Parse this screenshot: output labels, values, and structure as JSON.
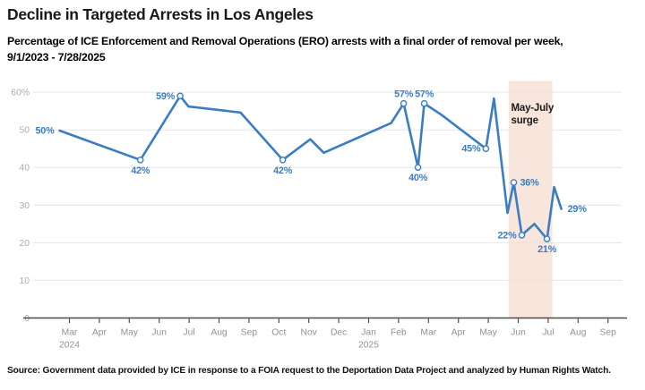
{
  "header": {
    "title": "Decline in Targeted Arrests in Los Angeles",
    "subtitle_line1": "Percentage of ICE Enforcement and Removal Operations (ERO) arrests with a final order of removal per week,",
    "subtitle_line2": "9/1/2023 - 7/28/2025"
  },
  "source": "Source: Government data provided by ICE in response to a FOIA request to the Deportation Data Project and analyzed by Human Rights Watch.",
  "chart_data": {
    "type": "line",
    "title": "Decline in Targeted Arrests in Los Angeles",
    "xlabel": "",
    "ylabel": "",
    "ylim": [
      0,
      62
    ],
    "grid": "horizontal",
    "line_color": "#3a7dc2",
    "marker_style": "open-circle",
    "x_axis": {
      "tick_labels": [
        "Mar",
        "Apr",
        "May",
        "Jun",
        "Jul",
        "Aug",
        "Sep",
        "Oct",
        "Nov",
        "Dec",
        "Jan",
        "Feb",
        "Mar",
        "Apr",
        "May",
        "Jun",
        "Jul",
        "Aug",
        "Sep"
      ],
      "year_labels": [
        {
          "text": "2024",
          "under_tick": 0
        },
        {
          "text": "2025",
          "under_tick": 10
        }
      ]
    },
    "y_axis": {
      "ticks": [
        {
          "v": 60,
          "label": "60%"
        },
        {
          "v": 50,
          "label": "50"
        },
        {
          "v": 40,
          "label": "40"
        },
        {
          "v": 30,
          "label": "30"
        },
        {
          "v": 20,
          "label": "20"
        },
        {
          "v": 10,
          "label": "10"
        },
        {
          "v": 0,
          "label": "0"
        }
      ]
    },
    "points": [
      {
        "m": -0.33,
        "v": 49.8,
        "label": "50%",
        "label_pos": "left",
        "marker": false
      },
      {
        "m": 2.37,
        "v": 42,
        "label": "42%",
        "label_pos": "below",
        "marker": true
      },
      {
        "m": 3.7,
        "v": 59,
        "label": "59%",
        "label_pos": "left",
        "marker": true
      },
      {
        "m": 3.98,
        "v": 56.2
      },
      {
        "m": 5.72,
        "v": 54.6
      },
      {
        "m": 7.13,
        "v": 42,
        "label": "42%",
        "label_pos": "below",
        "marker": true
      },
      {
        "m": 8.05,
        "v": 47.5
      },
      {
        "m": 8.5,
        "v": 43.9
      },
      {
        "m": 10.75,
        "v": 51.8
      },
      {
        "m": 11.17,
        "v": 57,
        "label": "57%",
        "label_pos": "above",
        "marker": true
      },
      {
        "m": 11.65,
        "v": 40,
        "label": "40%",
        "label_pos": "below",
        "marker": true
      },
      {
        "m": 11.86,
        "v": 57,
        "label": "57%",
        "label_pos": "above",
        "marker": true
      },
      {
        "m": 12.43,
        "v": 54
      },
      {
        "m": 13.92,
        "v": 45,
        "label": "45%",
        "label_pos": "left",
        "marker": true
      },
      {
        "m": 14.19,
        "v": 58.3
      },
      {
        "m": 14.64,
        "v": 27.9
      },
      {
        "m": 14.85,
        "v": 36,
        "label": "36%",
        "label_pos": "right",
        "marker": true
      },
      {
        "m": 15.12,
        "v": 22,
        "label": "22%",
        "label_pos": "left",
        "marker": true
      },
      {
        "m": 15.54,
        "v": 25
      },
      {
        "m": 15.96,
        "v": 21,
        "label": "21%",
        "label_pos": "below",
        "marker": true
      },
      {
        "m": 16.2,
        "v": 34.8
      },
      {
        "m": 16.44,
        "v": 29,
        "label": "29%",
        "label_pos": "right",
        "marker": false
      }
    ],
    "band": {
      "m_start": 14.68,
      "m_end": 16.14,
      "color": "#f8e5db"
    },
    "annotation": {
      "lines": [
        "May-July",
        "surge"
      ],
      "color": "#1b1b1b"
    },
    "colors": {
      "gridline": "#e6e6e6",
      "axis": "#4b4b4b",
      "month_label": "#8d9297",
      "y_label": "#a8acb1"
    }
  }
}
